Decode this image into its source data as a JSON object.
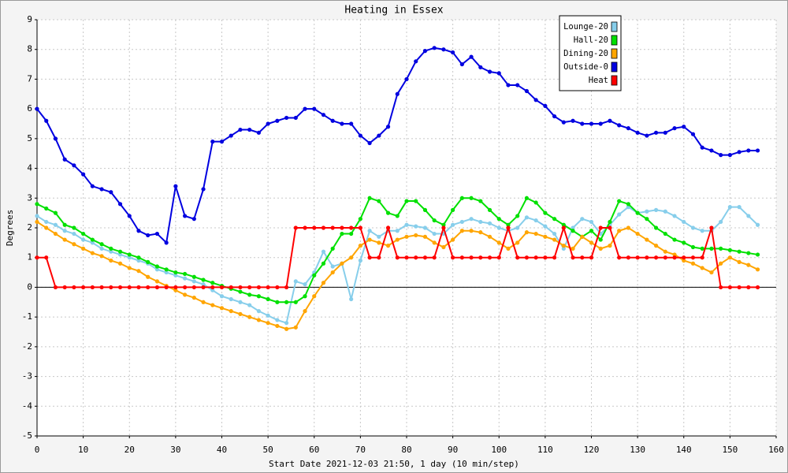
{
  "chart_data": {
    "type": "line",
    "title": "Heating in Essex",
    "x_label": "Start Date 2021-12-03 21:50, 1 day (10 min/step)",
    "y_label": "Degrees",
    "xlim": [
      0,
      160
    ],
    "ylim": [
      -5,
      9
    ],
    "xticks": [
      0,
      10,
      20,
      30,
      40,
      50,
      60,
      70,
      80,
      90,
      100,
      110,
      120,
      130,
      140,
      150,
      160
    ],
    "yticks": [
      -5,
      -4,
      -3,
      -2,
      -1,
      0,
      1,
      2,
      3,
      4,
      5,
      6,
      7,
      8,
      9
    ],
    "grid": true,
    "legend": "upper right",
    "x": [
      0,
      2,
      4,
      6,
      8,
      10,
      12,
      14,
      16,
      18,
      20,
      22,
      24,
      26,
      28,
      30,
      32,
      34,
      36,
      38,
      40,
      42,
      44,
      46,
      48,
      50,
      52,
      54,
      56,
      58,
      60,
      62,
      64,
      66,
      68,
      70,
      72,
      74,
      76,
      78,
      80,
      82,
      84,
      86,
      88,
      90,
      92,
      94,
      96,
      98,
      100,
      102,
      104,
      106,
      108,
      110,
      112,
      114,
      116,
      118,
      120,
      122,
      124,
      126,
      128,
      130,
      132,
      134,
      136,
      138,
      140,
      142,
      144,
      146,
      148,
      150,
      152,
      154,
      156
    ],
    "series": [
      {
        "name": "Lounge-20",
        "color": "#87ceeb",
        "values": [
          2.4,
          2.2,
          2.1,
          1.9,
          1.8,
          1.6,
          1.5,
          1.3,
          1.2,
          1.1,
          1.0,
          0.9,
          0.8,
          0.6,
          0.5,
          0.4,
          0.3,
          0.2,
          0.1,
          -0.1,
          -0.3,
          -0.4,
          -0.5,
          -0.6,
          -0.8,
          -0.95,
          -1.1,
          -1.2,
          0.2,
          0.1,
          0.5,
          1.2,
          0.7,
          0.8,
          -0.4,
          0.9,
          1.9,
          1.7,
          1.9,
          1.9,
          2.1,
          2.05,
          2.0,
          1.8,
          1.8,
          2.1,
          2.2,
          2.3,
          2.2,
          2.15,
          2.0,
          1.9,
          2.0,
          2.35,
          2.25,
          2.05,
          1.8,
          1.3,
          2.0,
          2.3,
          2.2,
          1.8,
          2.1,
          2.45,
          2.7,
          2.5,
          2.55,
          2.6,
          2.55,
          2.4,
          2.2,
          2.0,
          1.9,
          1.9,
          2.2,
          2.7,
          2.7,
          2.4,
          2.1
        ]
      },
      {
        "name": "Hall-20",
        "color": "#00e000",
        "values": [
          2.8,
          2.65,
          2.5,
          2.1,
          2.0,
          1.8,
          1.6,
          1.45,
          1.3,
          1.2,
          1.1,
          1.0,
          0.85,
          0.7,
          0.6,
          0.5,
          0.45,
          0.35,
          0.25,
          0.15,
          0.05,
          -0.05,
          -0.15,
          -0.25,
          -0.3,
          -0.4,
          -0.5,
          -0.5,
          -0.5,
          -0.3,
          0.4,
          0.8,
          1.3,
          1.8,
          1.8,
          2.3,
          3.0,
          2.9,
          2.5,
          2.4,
          2.9,
          2.9,
          2.6,
          2.25,
          2.1,
          2.6,
          3.0,
          3.0,
          2.9,
          2.6,
          2.3,
          2.1,
          2.4,
          3.0,
          2.85,
          2.5,
          2.3,
          2.1,
          1.9,
          1.7,
          1.9,
          1.6,
          2.2,
          2.9,
          2.8,
          2.5,
          2.3,
          2.0,
          1.8,
          1.6,
          1.5,
          1.35,
          1.3,
          1.3,
          1.3,
          1.25,
          1.2,
          1.15,
          1.1
        ]
      },
      {
        "name": "Dining-20",
        "color": "#ffa500",
        "values": [
          2.2,
          2.0,
          1.8,
          1.6,
          1.45,
          1.3,
          1.15,
          1.05,
          0.9,
          0.8,
          0.65,
          0.55,
          0.35,
          0.2,
          0.05,
          -0.1,
          -0.25,
          -0.35,
          -0.5,
          -0.6,
          -0.7,
          -0.8,
          -0.9,
          -1.0,
          -1.1,
          -1.2,
          -1.3,
          -1.4,
          -1.35,
          -0.8,
          -0.3,
          0.15,
          0.5,
          0.8,
          1.0,
          1.4,
          1.6,
          1.5,
          1.4,
          1.6,
          1.7,
          1.75,
          1.7,
          1.5,
          1.35,
          1.6,
          1.9,
          1.9,
          1.85,
          1.7,
          1.5,
          1.3,
          1.5,
          1.85,
          1.8,
          1.7,
          1.6,
          1.4,
          1.3,
          1.7,
          1.5,
          1.3,
          1.4,
          1.9,
          2.0,
          1.8,
          1.6,
          1.4,
          1.2,
          1.1,
          0.9,
          0.8,
          0.65,
          0.5,
          0.8,
          1.0,
          0.85,
          0.75,
          0.6
        ]
      },
      {
        "name": "Outside-0",
        "color": "#0000e0",
        "values": [
          6.0,
          5.6,
          5.0,
          4.3,
          4.1,
          3.8,
          3.4,
          3.3,
          3.2,
          2.8,
          2.4,
          1.9,
          1.75,
          1.8,
          1.5,
          3.4,
          2.4,
          2.3,
          3.3,
          4.9,
          4.9,
          5.1,
          5.3,
          5.3,
          5.2,
          5.5,
          5.6,
          5.7,
          5.7,
          6.0,
          6.0,
          5.8,
          5.6,
          5.5,
          5.5,
          5.1,
          4.85,
          5.1,
          5.4,
          6.5,
          7.0,
          7.6,
          7.95,
          8.05,
          8.0,
          7.9,
          7.5,
          7.75,
          7.4,
          7.25,
          7.2,
          6.8,
          6.8,
          6.6,
          6.3,
          6.1,
          5.75,
          5.55,
          5.6,
          5.5,
          5.5,
          5.5,
          5.6,
          5.45,
          5.35,
          5.2,
          5.1,
          5.2,
          5.2,
          5.35,
          5.4,
          5.15,
          4.7,
          4.6,
          4.45,
          4.45,
          4.55,
          4.6,
          4.6
        ]
      },
      {
        "name": "Heat",
        "color": "#ff0000",
        "values": [
          1,
          1,
          0,
          0,
          0,
          0,
          0,
          0,
          0,
          0,
          0,
          0,
          0,
          0,
          0,
          0,
          0,
          0,
          0,
          0,
          0,
          0,
          0,
          0,
          0,
          0,
          0,
          0,
          2,
          2,
          2,
          2,
          2,
          2,
          2,
          2,
          1,
          1,
          2,
          1,
          1,
          1,
          1,
          1,
          2,
          1,
          1,
          1,
          1,
          1,
          1,
          2,
          1,
          1,
          1,
          1,
          1,
          2,
          1,
          1,
          1,
          2,
          2,
          1,
          1,
          1,
          1,
          1,
          1,
          1,
          1,
          1,
          1,
          2,
          0,
          0,
          0,
          0,
          0
        ]
      }
    ]
  }
}
